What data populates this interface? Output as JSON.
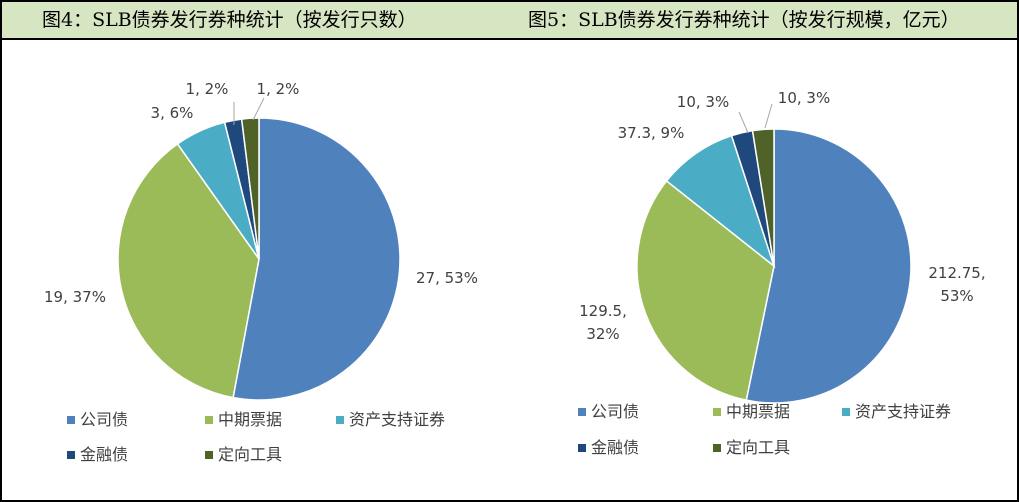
{
  "header": {
    "left_title": "图4：SLB债券发行券种统计（按发行只数）",
    "right_title": "图5：SLB债券发行券种统计（按发行规模，亿元）"
  },
  "colors": {
    "header_bg": "#d6e5c2",
    "公司债": "#4f81bd",
    "中期票据": "#9bbb59",
    "资产支持证券": "#4bacc6",
    "金融债": "#1f497d",
    "定向工具": "#4f6228"
  },
  "chart_data": [
    {
      "type": "pie",
      "title": "图4：SLB债券发行券种统计（按发行只数）",
      "legend_position": "bottom",
      "slices": [
        {
          "name": "公司债",
          "value": 27,
          "percent": 53,
          "label": "27, 53%"
        },
        {
          "name": "中期票据",
          "value": 19,
          "percent": 37,
          "label": "19, 37%"
        },
        {
          "name": "资产支持证券",
          "value": 3,
          "percent": 6,
          "label": "3, 6%"
        },
        {
          "name": "金融债",
          "value": 1,
          "percent": 2,
          "label": "1, 2%"
        },
        {
          "name": "定向工具",
          "value": 1,
          "percent": 2,
          "label": "1, 2%"
        }
      ],
      "legend": [
        "公司债",
        "中期票据",
        "资产支持证券",
        "金融债",
        "定向工具"
      ]
    },
    {
      "type": "pie",
      "title": "图5：SLB债券发行券种统计（按发行规模，亿元）",
      "legend_position": "bottom",
      "slices": [
        {
          "name": "公司债",
          "value": 212.75,
          "percent": 53,
          "label": "212.75,\n53%"
        },
        {
          "name": "中期票据",
          "value": 129.5,
          "percent": 32,
          "label": "129.5,\n32%"
        },
        {
          "name": "资产支持证券",
          "value": 37.3,
          "percent": 9,
          "label": "37.3, 9%"
        },
        {
          "name": "金融债",
          "value": 10,
          "percent": 3,
          "label": "10, 3%"
        },
        {
          "name": "定向工具",
          "value": 10,
          "percent": 3,
          "label": "10, 3%"
        }
      ],
      "legend": [
        "公司债",
        "中期票据",
        "资产支持证券",
        "金融债",
        "定向工具"
      ]
    }
  ]
}
